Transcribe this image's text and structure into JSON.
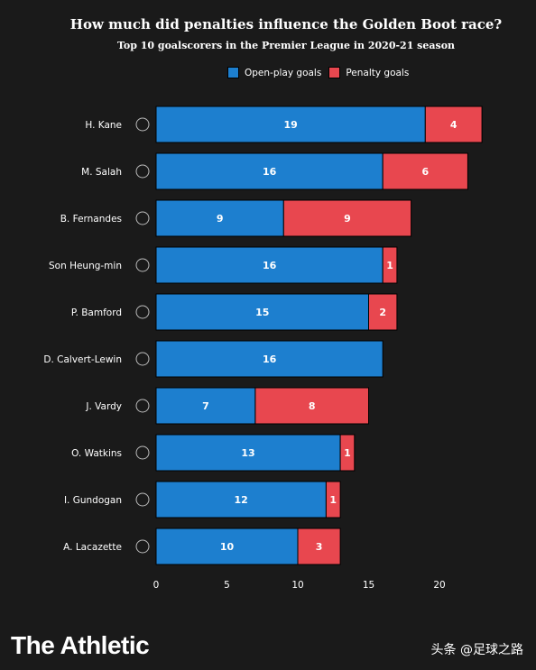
{
  "title": "How much did penalties influence the Golden Boot race?",
  "subtitle": "Top 10 goalscorers in the Premier League in 2020-21 season",
  "legend": {
    "open_play": "Open-play goals",
    "penalty": "Penalty goals"
  },
  "colors": {
    "open_play": "#1d7fcf",
    "penalty": "#e8474f",
    "background": "#1a1a1a"
  },
  "brand": "The Athletic",
  "watermark": "头条 @足球之路",
  "chart_data": {
    "type": "bar",
    "orientation": "horizontal",
    "stacked": true,
    "categories": [
      "H. Kane",
      "M. Salah",
      "B. Fernandes",
      "Son Heung-min",
      "P. Bamford",
      "D. Calvert-Lewin",
      "J. Vardy",
      "O. Watkins",
      "I. Gundogan",
      "A. Lacazette"
    ],
    "club_icons": [
      "tottenham-icon",
      "liverpool-icon",
      "man-utd-icon",
      "tottenham-icon",
      "leeds-icon",
      "everton-icon",
      "leicester-icon",
      "aston-villa-icon",
      "man-city-icon",
      "arsenal-icon"
    ],
    "series": [
      {
        "name": "Open-play goals",
        "values": [
          19,
          16,
          9,
          16,
          15,
          16,
          7,
          13,
          12,
          10
        ]
      },
      {
        "name": "Penalty goals",
        "values": [
          4,
          6,
          9,
          1,
          2,
          0,
          8,
          1,
          1,
          3
        ]
      }
    ],
    "xlim": [
      0,
      23
    ],
    "xticks": [
      0,
      5,
      10,
      15,
      20
    ],
    "legend_position": "top"
  }
}
